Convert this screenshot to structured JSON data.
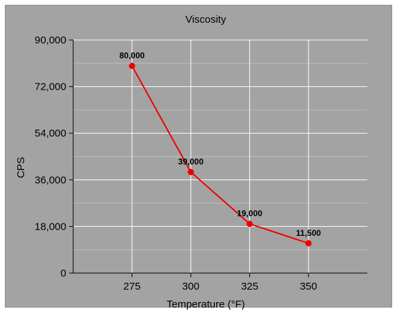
{
  "chart_data": {
    "type": "line",
    "title": "Viscosity",
    "xlabel": "Temperature (°F)",
    "ylabel": "CPS",
    "categories": [
      "275",
      "300",
      "325",
      "350"
    ],
    "x": [
      275,
      300,
      325,
      350
    ],
    "series": [
      {
        "values": [
          80000,
          39000,
          19000,
          11500
        ],
        "labels": [
          "80,000",
          "39,000",
          "19,000",
          "11,500"
        ],
        "color": "#ee0000"
      }
    ],
    "ylim": [
      0,
      90000
    ],
    "xlim": [
      250,
      375
    ],
    "yticks": [
      0,
      18000,
      36000,
      54000,
      72000,
      90000
    ],
    "ytick_labels": [
      "0",
      "18,000",
      "36,000",
      "54,000",
      "72,000",
      "90,000"
    ],
    "xticks": [
      275,
      300,
      325,
      350
    ],
    "xtick_labels": [
      "275",
      "300",
      "325",
      "350"
    ],
    "grid": true,
    "legend": "none"
  },
  "colors": {
    "background": "#a3a3a3",
    "grid_major": "#ffffff",
    "grid_minor": "#bdbdbd",
    "series": "#ee0000"
  }
}
